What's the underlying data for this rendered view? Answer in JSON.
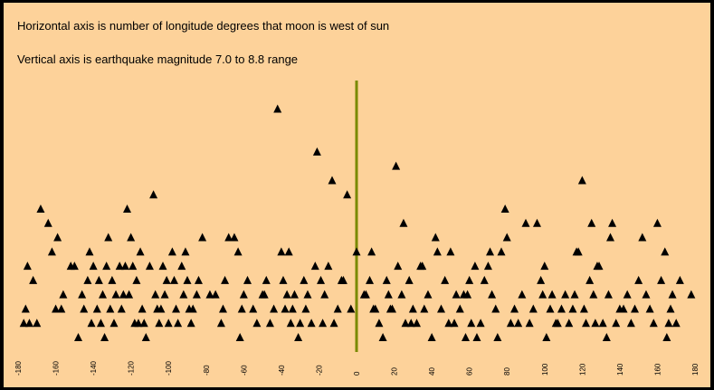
{
  "chart_data": {
    "type": "scatter",
    "notes": [
      "Horizontal axis is number of longitude degrees that moon is west of sun",
      "Vertical axis is earthquake magnitude  7.0 to 8.8 range"
    ],
    "x_range": [
      -180,
      180
    ],
    "y_range": [
      7.0,
      8.8
    ],
    "x_ticks": [
      -180,
      -160,
      -140,
      -120,
      -100,
      -80,
      -60,
      -40,
      -20,
      0,
      20,
      40,
      60,
      80,
      100,
      120,
      140,
      160,
      180
    ],
    "reference_line_x": 0,
    "marker": "triangle",
    "colors": {
      "background": "#fdd29a",
      "frame": "#000000",
      "marker": "#000000",
      "reference_line": "#7a8a00"
    },
    "points": [
      [
        -177,
        7.1
      ],
      [
        -176,
        7.2
      ],
      [
        -175,
        7.5
      ],
      [
        -174,
        7.1
      ],
      [
        -172,
        7.4
      ],
      [
        -170,
        7.1
      ],
      [
        -168,
        7.9
      ],
      [
        -164,
        7.8
      ],
      [
        -162,
        7.6
      ],
      [
        -160,
        7.2
      ],
      [
        -159,
        7.7
      ],
      [
        -157,
        7.2
      ],
      [
        -156,
        7.3
      ],
      [
        -152,
        7.5
      ],
      [
        -150,
        7.5
      ],
      [
        -148,
        7.0
      ],
      [
        -146,
        7.3
      ],
      [
        -145,
        7.2
      ],
      [
        -143,
        7.4
      ],
      [
        -142,
        7.6
      ],
      [
        -141,
        7.1
      ],
      [
        -140,
        7.5
      ],
      [
        -138,
        7.2
      ],
      [
        -137,
        7.4
      ],
      [
        -136,
        7.1
      ],
      [
        -135,
        7.3
      ],
      [
        -134,
        7.0
      ],
      [
        -133,
        7.5
      ],
      [
        -132,
        7.7
      ],
      [
        -131,
        7.2
      ],
      [
        -130,
        7.4
      ],
      [
        -129,
        7.1
      ],
      [
        -128,
        7.3
      ],
      [
        -126,
        7.5
      ],
      [
        -125,
        7.2
      ],
      [
        -124,
        7.3
      ],
      [
        -123,
        7.5
      ],
      [
        -122,
        7.9
      ],
      [
        -121,
        7.3
      ],
      [
        -120,
        7.7
      ],
      [
        -119,
        7.5
      ],
      [
        -118,
        7.1
      ],
      [
        -117,
        7.4
      ],
      [
        -116,
        7.1
      ],
      [
        -115,
        7.6
      ],
      [
        -114,
        7.2
      ],
      [
        -113,
        7.1
      ],
      [
        -112,
        7.0
      ],
      [
        -110,
        7.5
      ],
      [
        -108,
        8.0
      ],
      [
        -107,
        7.3
      ],
      [
        -106,
        7.2
      ],
      [
        -105,
        7.1
      ],
      [
        -104,
        7.2
      ],
      [
        -103,
        7.5
      ],
      [
        -102,
        7.3
      ],
      [
        -101,
        7.4
      ],
      [
        -100,
        7.1
      ],
      [
        -98,
        7.6
      ],
      [
        -97,
        7.4
      ],
      [
        -96,
        7.2
      ],
      [
        -95,
        7.1
      ],
      [
        -93,
        7.5
      ],
      [
        -92,
        7.3
      ],
      [
        -91,
        7.6
      ],
      [
        -90,
        7.4
      ],
      [
        -89,
        7.2
      ],
      [
        -88,
        7.1
      ],
      [
        -87,
        7.2
      ],
      [
        -85,
        7.3
      ],
      [
        -84,
        7.4
      ],
      [
        -82,
        7.7
      ],
      [
        -78,
        7.3
      ],
      [
        -75,
        7.3
      ],
      [
        -72,
        7.1
      ],
      [
        -71,
        7.2
      ],
      [
        -70,
        7.4
      ],
      [
        -68,
        7.7
      ],
      [
        -65,
        7.7
      ],
      [
        -63,
        7.6
      ],
      [
        -62,
        7.0
      ],
      [
        -61,
        7.2
      ],
      [
        -60,
        7.3
      ],
      [
        -58,
        7.4
      ],
      [
        -55,
        7.2
      ],
      [
        -53,
        7.1
      ],
      [
        -50,
        7.3
      ],
      [
        -49,
        7.3
      ],
      [
        -48,
        7.4
      ],
      [
        -46,
        7.1
      ],
      [
        -44,
        7.2
      ],
      [
        -42,
        8.6
      ],
      [
        -40,
        7.6
      ],
      [
        -39,
        7.4
      ],
      [
        -38,
        7.2
      ],
      [
        -37,
        7.3
      ],
      [
        -36,
        7.6
      ],
      [
        -35,
        7.1
      ],
      [
        -34,
        7.2
      ],
      [
        -33,
        7.3
      ],
      [
        -31,
        7.0
      ],
      [
        -30,
        7.1
      ],
      [
        -28,
        7.4
      ],
      [
        -27,
        7.2
      ],
      [
        -26,
        7.3
      ],
      [
        -24,
        7.1
      ],
      [
        -22,
        7.5
      ],
      [
        -21,
        8.3
      ],
      [
        -19,
        7.4
      ],
      [
        -18,
        7.1
      ],
      [
        -17,
        7.3
      ],
      [
        -15,
        7.5
      ],
      [
        -13,
        8.1
      ],
      [
        -12,
        7.1
      ],
      [
        -10,
        7.2
      ],
      [
        -8,
        7.4
      ],
      [
        -7,
        7.4
      ],
      [
        -5,
        8.0
      ],
      [
        -3,
        7.2
      ],
      [
        0,
        7.6
      ],
      [
        4,
        7.3
      ],
      [
        5,
        7.3
      ],
      [
        7,
        7.4
      ],
      [
        8,
        7.6
      ],
      [
        9,
        7.2
      ],
      [
        10,
        7.2
      ],
      [
        12,
        7.1
      ],
      [
        14,
        7.0
      ],
      [
        16,
        7.4
      ],
      [
        17,
        7.3
      ],
      [
        18,
        7.2
      ],
      [
        19,
        7.2
      ],
      [
        21,
        8.2
      ],
      [
        22,
        7.5
      ],
      [
        24,
        7.3
      ],
      [
        25,
        7.8
      ],
      [
        26,
        7.1
      ],
      [
        28,
        7.4
      ],
      [
        29,
        7.1
      ],
      [
        30,
        7.2
      ],
      [
        32,
        7.1
      ],
      [
        34,
        7.5
      ],
      [
        35,
        7.5
      ],
      [
        36,
        7.2
      ],
      [
        38,
        7.3
      ],
      [
        40,
        7.0
      ],
      [
        42,
        7.7
      ],
      [
        43,
        7.6
      ],
      [
        45,
        7.2
      ],
      [
        47,
        7.4
      ],
      [
        49,
        7.1
      ],
      [
        50,
        7.6
      ],
      [
        52,
        7.1
      ],
      [
        53,
        7.3
      ],
      [
        55,
        7.2
      ],
      [
        57,
        7.3
      ],
      [
        58,
        7.0
      ],
      [
        59,
        7.3
      ],
      [
        60,
        7.4
      ],
      [
        61,
        7.1
      ],
      [
        63,
        7.5
      ],
      [
        64,
        7.0
      ],
      [
        66,
        7.1
      ],
      [
        68,
        7.4
      ],
      [
        70,
        7.5
      ],
      [
        71,
        7.6
      ],
      [
        72,
        7.3
      ],
      [
        74,
        7.2
      ],
      [
        75,
        7.0
      ],
      [
        77,
        7.6
      ],
      [
        79,
        7.9
      ],
      [
        80,
        7.7
      ],
      [
        82,
        7.1
      ],
      [
        84,
        7.2
      ],
      [
        86,
        7.1
      ],
      [
        88,
        7.3
      ],
      [
        90,
        7.8
      ],
      [
        92,
        7.1
      ],
      [
        94,
        7.2
      ],
      [
        96,
        7.8
      ],
      [
        98,
        7.4
      ],
      [
        99,
        7.3
      ],
      [
        100,
        7.5
      ],
      [
        101,
        7.0
      ],
      [
        103,
        7.2
      ],
      [
        104,
        7.3
      ],
      [
        106,
        7.1
      ],
      [
        107,
        7.1
      ],
      [
        109,
        7.2
      ],
      [
        111,
        7.3
      ],
      [
        113,
        7.1
      ],
      [
        115,
        7.2
      ],
      [
        116,
        7.3
      ],
      [
        117,
        7.6
      ],
      [
        118,
        7.6
      ],
      [
        120,
        8.1
      ],
      [
        121,
        7.2
      ],
      [
        122,
        7.1
      ],
      [
        124,
        7.4
      ],
      [
        125,
        7.8
      ],
      [
        126,
        7.3
      ],
      [
        127,
        7.1
      ],
      [
        128,
        7.5
      ],
      [
        129,
        7.5
      ],
      [
        131,
        7.1
      ],
      [
        133,
        7.0
      ],
      [
        134,
        7.3
      ],
      [
        135,
        7.7
      ],
      [
        136,
        7.8
      ],
      [
        138,
        7.1
      ],
      [
        140,
        7.2
      ],
      [
        142,
        7.2
      ],
      [
        144,
        7.3
      ],
      [
        146,
        7.1
      ],
      [
        148,
        7.2
      ],
      [
        150,
        7.4
      ],
      [
        152,
        7.7
      ],
      [
        154,
        7.3
      ],
      [
        156,
        7.2
      ],
      [
        158,
        7.1
      ],
      [
        160,
        7.8
      ],
      [
        162,
        7.4
      ],
      [
        164,
        7.6
      ],
      [
        165,
        7.0
      ],
      [
        166,
        7.1
      ],
      [
        167,
        7.2
      ],
      [
        168,
        7.3
      ],
      [
        170,
        7.1
      ],
      [
        172,
        7.4
      ],
      [
        178,
        7.3
      ]
    ]
  }
}
